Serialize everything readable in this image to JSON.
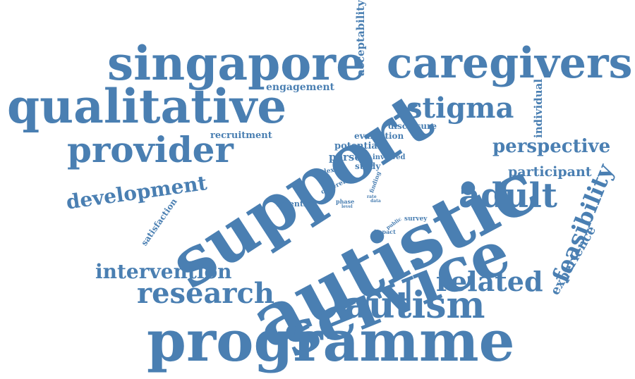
{
  "color": "#4a7fb2",
  "words": {
    "singapore": "singapore",
    "caregivers": "caregivers",
    "acceptability": "acceptability",
    "engagement": "engagement",
    "qualitative": "qualitative",
    "support": "support",
    "stigma": "stigma",
    "individual": "individual",
    "disclosure": "disclosure",
    "evaluation": "evaluation",
    "recruitment": "recruitment",
    "provider": "provider",
    "perspective": "perspective",
    "person": "person",
    "potential": "potential",
    "involved": "involved",
    "study": "study",
    "complex": "complex",
    "different": "different",
    "finding": "finding",
    "rate": "rate",
    "participant": "participant",
    "development": "development",
    "autistic": "autistic",
    "adult": "adult",
    "feasibility": "feasibility",
    "satisfaction": "satisfaction",
    "retention": "retention",
    "phase": "phase",
    "level": "level",
    "data": "data",
    "public": "public",
    "survey": "survey",
    "impact": "impact",
    "experience": "experience",
    "intervention": "intervention",
    "service": "service",
    "related": "related",
    "research": "research",
    "autism": "autism",
    "programme": "programme"
  }
}
